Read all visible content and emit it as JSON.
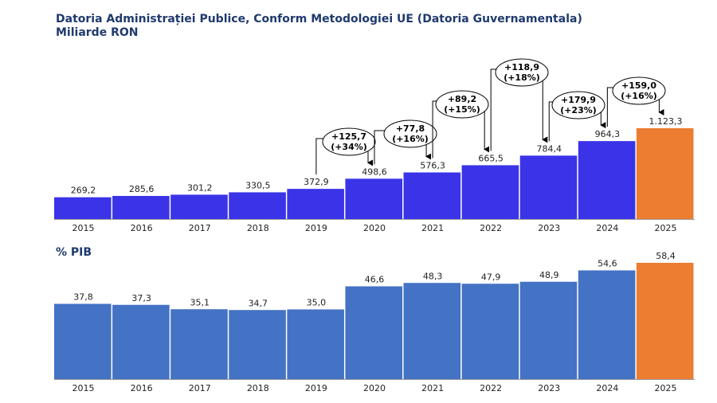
{
  "title": "Datoria Administrației Publice, Conform Metodologiei UE (Datoria Guvernamentala)",
  "subtitle": "Miliarde RON",
  "colors": {
    "base": "#3a33e8",
    "highlight": "#ed7d31",
    "pib": "#4472c4",
    "title": "#1f3a6e"
  },
  "chart_data": [
    {
      "type": "bar",
      "categories": [
        "2015",
        "2016",
        "2017",
        "2018",
        "2019",
        "2020",
        "2021",
        "2022",
        "2023",
        "2024",
        "2025"
      ],
      "values": [
        269.2,
        285.6,
        301.2,
        330.5,
        372.9,
        498.6,
        576.3,
        665.5,
        784.4,
        964.3,
        1123.3
      ],
      "labels": [
        "269,2",
        "285,6",
        "301,2",
        "330,5",
        "372,9",
        "498,6",
        "576,3",
        "665,5",
        "784,4",
        "964,3",
        "1.123,3"
      ],
      "highlight_index": 10,
      "annotations": [
        {
          "from": "2019",
          "to": "2020",
          "text": [
            "+125,7",
            "(+34%)"
          ]
        },
        {
          "from": "2020",
          "to": "2021",
          "text": [
            "+77,8",
            "(+16%)"
          ]
        },
        {
          "from": "2021",
          "to": "2022",
          "text": [
            "+89,2",
            "(+15%)"
          ]
        },
        {
          "from": "2022",
          "to": "2023",
          "text": [
            "+118,9",
            "(+18%)"
          ]
        },
        {
          "from": "2023",
          "to": "2024",
          "text": [
            "+179,9",
            "(+23%)"
          ]
        },
        {
          "from": "2024",
          "to": "2025",
          "text": [
            "+159,0",
            "(+16%)"
          ]
        }
      ]
    },
    {
      "type": "bar",
      "title": "% PIB",
      "categories": [
        "2015",
        "2016",
        "2017",
        "2018",
        "2019",
        "2020",
        "2021",
        "2022",
        "2023",
        "2024",
        "2025"
      ],
      "values": [
        37.8,
        37.3,
        35.1,
        34.7,
        35.0,
        46.6,
        48.3,
        47.9,
        48.9,
        54.6,
        58.4
      ],
      "labels": [
        "37,8",
        "37,3",
        "35,1",
        "34,7",
        "35,0",
        "46,6",
        "48,3",
        "47,9",
        "48,9",
        "54,6",
        "58,4"
      ],
      "highlight_index": 10
    }
  ]
}
